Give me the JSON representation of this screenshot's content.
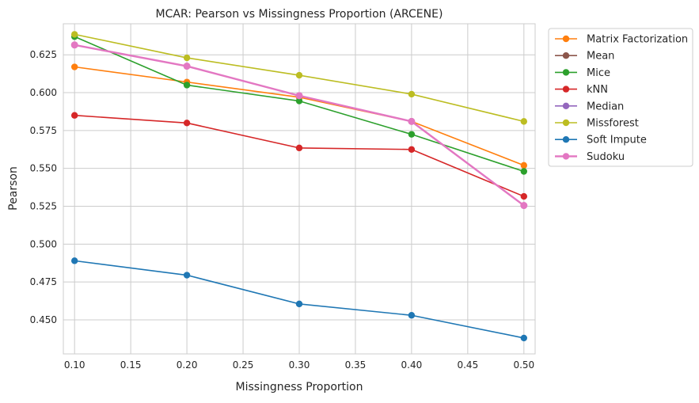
{
  "chart_data": {
    "type": "line",
    "title": "MCAR: Pearson vs Missingness Proportion (ARCENE)",
    "xlabel": "Missingness Proportion",
    "ylabel": "Pearson",
    "x": [
      0.1,
      0.2,
      0.3,
      0.4,
      0.5
    ],
    "xlim": [
      0.09,
      0.51
    ],
    "ylim": [
      0.4275,
      0.6455
    ],
    "xticks": [
      "0.10",
      "0.15",
      "0.20",
      "0.25",
      "0.30",
      "0.35",
      "0.40",
      "0.45",
      "0.50"
    ],
    "xtick_values": [
      0.1,
      0.15,
      0.2,
      0.25,
      0.3,
      0.35,
      0.4,
      0.45,
      0.5
    ],
    "yticks": [
      "0.450",
      "0.475",
      "0.500",
      "0.525",
      "0.550",
      "0.575",
      "0.600",
      "0.625"
    ],
    "ytick_values": [
      0.45,
      0.475,
      0.5,
      0.525,
      0.55,
      0.575,
      0.6,
      0.625
    ],
    "grid": true,
    "legend_position": "outside-right-top",
    "series": [
      {
        "name": "Matrix Factorization",
        "color": "#ff7f0e",
        "values": [
          0.617,
          0.607,
          0.597,
          0.581,
          0.552
        ]
      },
      {
        "name": "Mean",
        "color": "#8c564b",
        "values": [
          0.6315,
          0.6175,
          0.598,
          0.581,
          0.5255
        ]
      },
      {
        "name": "Mice",
        "color": "#2ca02c",
        "values": [
          0.637,
          0.605,
          0.5945,
          0.5725,
          0.548
        ]
      },
      {
        "name": "kNN",
        "color": "#d62728",
        "values": [
          0.585,
          0.58,
          0.5635,
          0.5625,
          0.5315
        ]
      },
      {
        "name": "Median",
        "color": "#9467bd",
        "values": [
          0.6315,
          0.6175,
          0.598,
          0.581,
          0.5255
        ]
      },
      {
        "name": "Missforest",
        "color": "#bcbd22",
        "values": [
          0.6385,
          0.623,
          0.6115,
          0.599,
          0.581
        ]
      },
      {
        "name": "Soft Impute",
        "color": "#1f77b4",
        "values": [
          0.489,
          0.4795,
          0.4605,
          0.453,
          0.438
        ]
      },
      {
        "name": "Sudoku",
        "color": "#e377c2",
        "values": [
          0.6315,
          0.6175,
          0.598,
          0.581,
          0.5255
        ],
        "thick": true
      }
    ]
  }
}
